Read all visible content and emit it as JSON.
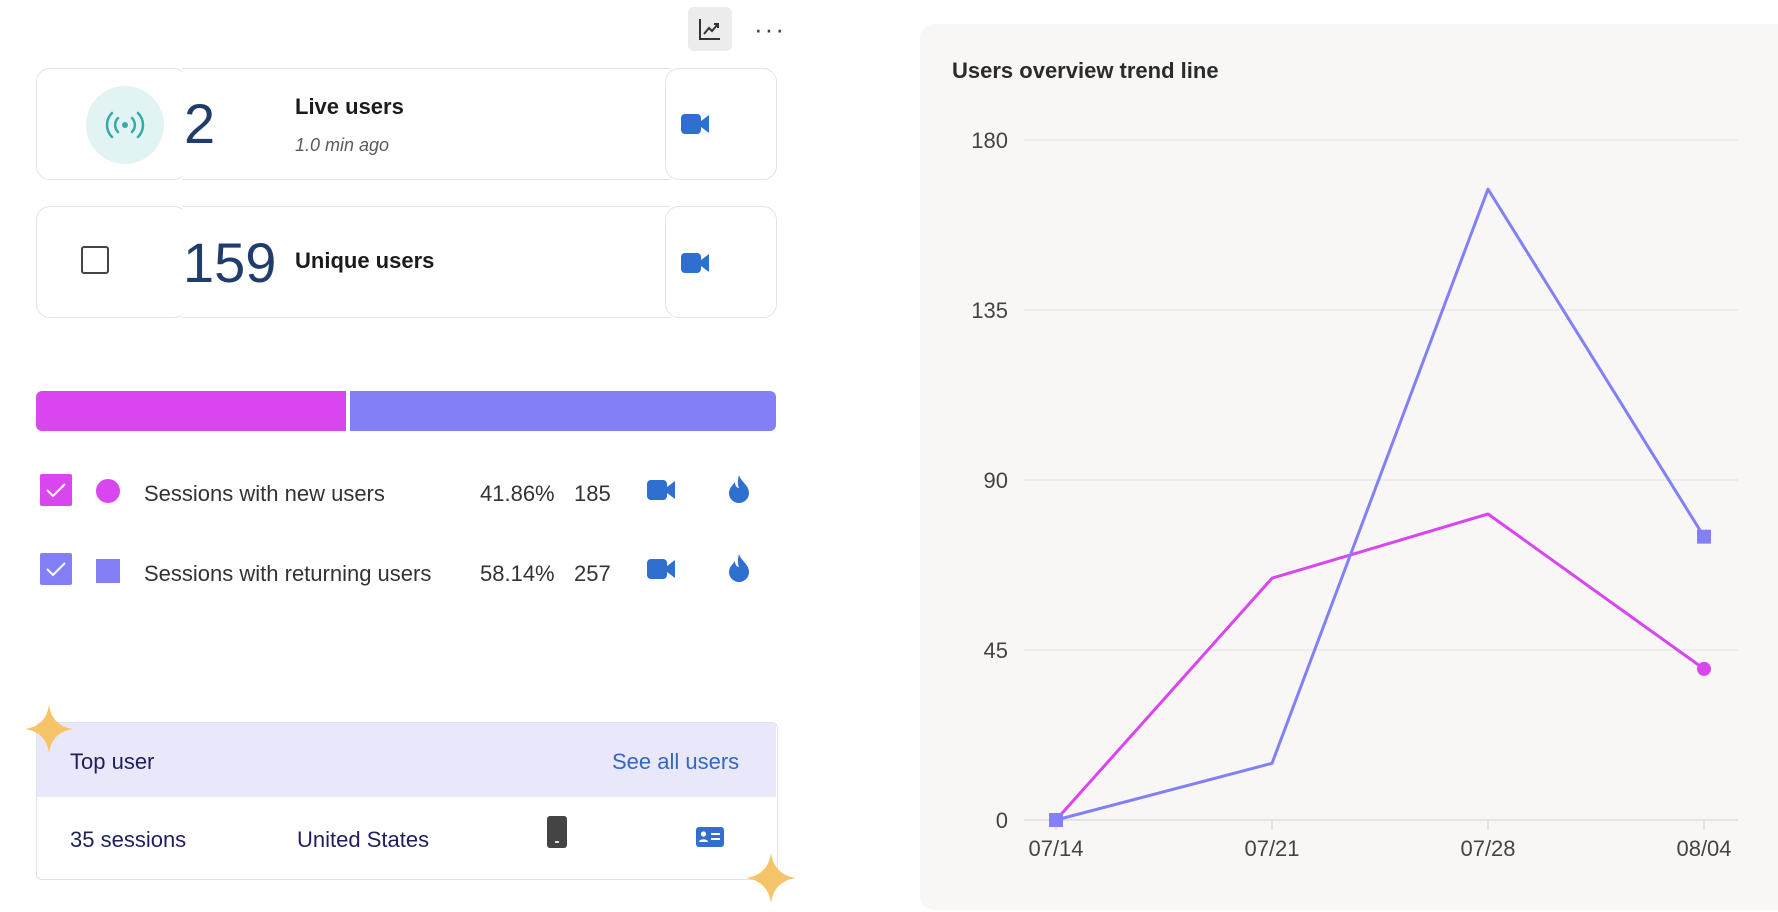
{
  "toolbar": {
    "chart_icon": "trend-chart-icon",
    "more_label": "···"
  },
  "live": {
    "count": "2",
    "label": "Live users",
    "time": "1.0 min ago",
    "icon": "broadcast-icon"
  },
  "unique": {
    "count": "159",
    "label": "Unique users"
  },
  "sessions": {
    "new_fraction": 0.4186,
    "items": [
      {
        "label": "Sessions with new users",
        "percent": "41.86%",
        "count": "185",
        "color": "#d946ef",
        "marker": "circle"
      },
      {
        "label": "Sessions with returning users",
        "percent": "58.14%",
        "count": "257",
        "color": "#8380f7",
        "marker": "square"
      }
    ]
  },
  "top_user": {
    "header": "Top user",
    "link": "See all users",
    "sessions": "35 sessions",
    "country": "United States"
  },
  "chart_data": {
    "type": "line",
    "title": "Users overview trend line",
    "x": [
      "07/14",
      "07/21",
      "07/28",
      "08/04"
    ],
    "ylim": [
      0,
      180
    ],
    "yticks": [
      "0",
      "45",
      "90",
      "135",
      "180"
    ],
    "grid": true,
    "series": [
      {
        "values": [
          0,
          64,
          81,
          40
        ],
        "color": "#d946ef",
        "marker": "circle"
      },
      {
        "values": [
          0,
          15,
          167,
          75
        ],
        "color": "#8380f7",
        "marker": "square"
      }
    ]
  }
}
